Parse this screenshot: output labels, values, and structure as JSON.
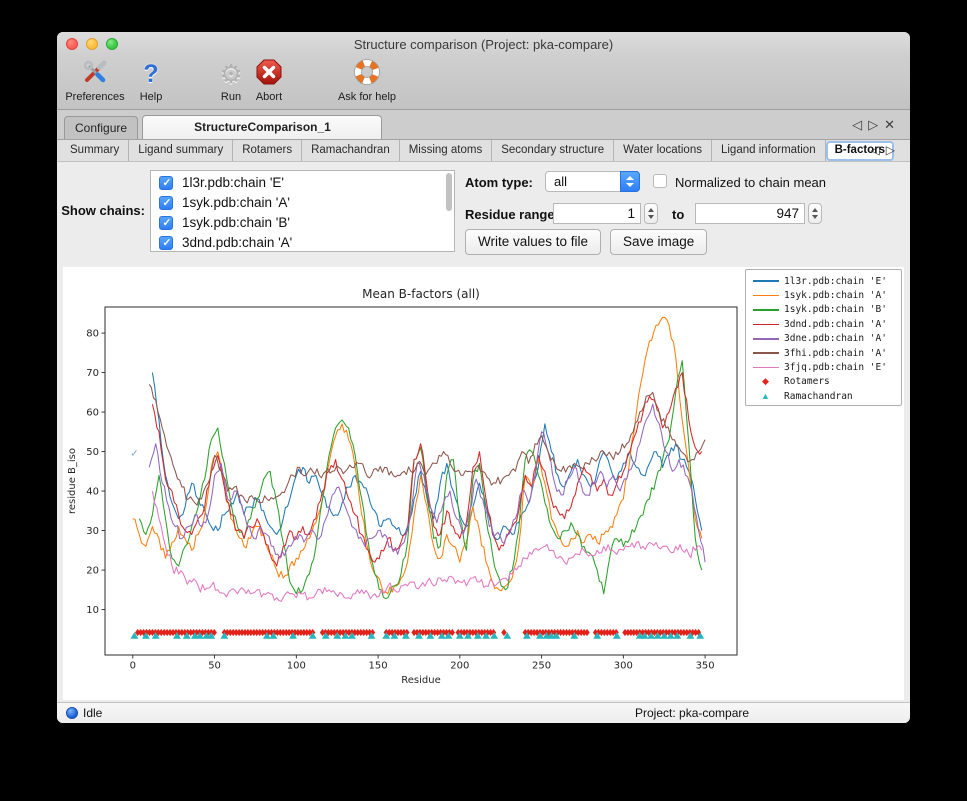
{
  "window": {
    "title": "Structure comparison (Project: pka-compare)"
  },
  "icons": {
    "tab_prev": "◁",
    "tab_next": "▷",
    "tab_close": "✕"
  },
  "toolbar": {
    "items": [
      {
        "label": "Preferences",
        "icon": "crossed-tools"
      },
      {
        "label": "Help",
        "icon": "question-mark",
        "glyph": "?"
      },
      {
        "label": "Run",
        "icon": "gear",
        "glyph": "⚙"
      },
      {
        "label": "Abort",
        "icon": "octagon-x"
      },
      {
        "label": "Ask for help",
        "icon": "lifebuoy"
      }
    ]
  },
  "tabs": {
    "items": [
      {
        "label": "Configure",
        "active": false
      },
      {
        "label": "StructureComparison_1",
        "active": true
      }
    ]
  },
  "subtabs": {
    "active_index": 8,
    "items": [
      {
        "label": "Summary"
      },
      {
        "label": "Ligand summary"
      },
      {
        "label": "Rotamers"
      },
      {
        "label": "Ramachandran"
      },
      {
        "label": "Missing atoms"
      },
      {
        "label": "Secondary structure"
      },
      {
        "label": "Water locations"
      },
      {
        "label": "Ligand information"
      },
      {
        "label": "B-factors"
      }
    ]
  },
  "controls": {
    "show_chains_label": "Show chains:",
    "chains": [
      {
        "label": "1l3r.pdb:chain 'E'",
        "checked": true
      },
      {
        "label": "1syk.pdb:chain 'A'",
        "checked": true
      },
      {
        "label": "1syk.pdb:chain 'B'",
        "checked": true
      },
      {
        "label": "3dnd.pdb:chain 'A'",
        "checked": true
      }
    ],
    "atom_type_label": "Atom type:",
    "atom_type_value": "all",
    "normalized_label": "Normalized to chain mean",
    "normalized_checked": false,
    "residue_range_label": "Residue range:",
    "range_from": "1",
    "range_to_word": "to",
    "range_to": "947",
    "write_button": "Write values to file",
    "save_button": "Save image"
  },
  "statusbar": {
    "status": "Idle",
    "project": "Project: pka-compare"
  },
  "chart_data": {
    "type": "line",
    "title": "Mean B-factors (all)",
    "xlabel": "Residue",
    "ylabel": "residue B_iso",
    "xlim": [
      -17,
      369.5
    ],
    "ylim": [
      -1.5,
      86.6
    ],
    "xticks": [
      0,
      50,
      100,
      150,
      200,
      250,
      300,
      350
    ],
    "yticks": [
      10,
      20,
      30,
      40,
      50,
      60,
      70,
      80
    ],
    "grid": false,
    "legend_position": "outside-right",
    "series": [
      {
        "name": "1l3r.pdb:chain 'E'",
        "color": "#1f77b4",
        "x0": 12,
        "dx": 4,
        "y": [
          70,
          58,
          44,
          37,
          33,
          36,
          42,
          38,
          35,
          31,
          30,
          34,
          37,
          40,
          34,
          36,
          38,
          35,
          31,
          29,
          33,
          38,
          44,
          46,
          42,
          44,
          39,
          36,
          34,
          37,
          41,
          44,
          42,
          39,
          35,
          31,
          33,
          31,
          29,
          31,
          38,
          45,
          38,
          33,
          42,
          47,
          40,
          34,
          31,
          36,
          42,
          36,
          30,
          28,
          31,
          29,
          32,
          35,
          40,
          46,
          57,
          50,
          44,
          41,
          45,
          48,
          44,
          41,
          45,
          50,
          46,
          43,
          47,
          50,
          46,
          44,
          47,
          50,
          46,
          49,
          52,
          48,
          45,
          38,
          30
        ]
      },
      {
        "name": "1syk.pdb:chain 'A'",
        "color": "#ff7f0e",
        "x0": 0,
        "dx": 4,
        "y": [
          33,
          29,
          26,
          31,
          28,
          23,
          27,
          31,
          28,
          25,
          29,
          34,
          46,
          50,
          41,
          33,
          29,
          26,
          28,
          31,
          29,
          24,
          20,
          18,
          21,
          23,
          25,
          28,
          32,
          38,
          47,
          54,
          57,
          53,
          46,
          34,
          25,
          19,
          16,
          14,
          16,
          18,
          22,
          34,
          44,
          36,
          26,
          23,
          29,
          26,
          22,
          27,
          36,
          30,
          22,
          17,
          15,
          16,
          18,
          26,
          44,
          41,
          48,
          42,
          33,
          29,
          26,
          28,
          30,
          27,
          29,
          27,
          29,
          31,
          34,
          38,
          48,
          60,
          70,
          78,
          82,
          84,
          82,
          74,
          58,
          46,
          33,
          28
        ]
      },
      {
        "name": "1syk.pdb:chain 'B'",
        "color": "#2ca02c",
        "x0": 4,
        "dx": 4,
        "y": [
          33,
          29,
          34,
          44,
          33,
          23,
          21,
          26,
          31,
          36,
          43,
          53,
          56,
          47,
          37,
          31,
          28,
          33,
          38,
          43,
          45,
          37,
          27,
          17,
          14,
          15,
          19,
          26,
          38,
          49,
          56,
          58,
          56,
          49,
          38,
          27,
          19,
          15,
          13,
          16,
          19,
          27,
          48,
          51,
          39,
          28,
          26,
          44,
          48,
          33,
          25,
          43,
          47,
          33,
          24,
          18,
          15,
          20,
          30,
          48,
          50,
          44,
          37,
          31,
          28,
          30,
          32,
          29,
          26,
          24,
          20,
          14,
          24,
          28,
          26,
          28,
          31,
          34,
          38,
          43,
          48,
          53,
          65,
          73,
          52,
          28,
          20
        ]
      },
      {
        "name": "3dnd.pdb:chain 'A'",
        "color": "#d62728",
        "x0": 12,
        "dx": 4,
        "y": [
          62,
          55,
          43,
          40,
          34,
          30,
          29,
          33,
          36,
          45,
          49,
          41,
          34,
          30,
          28,
          31,
          33,
          29,
          24,
          21,
          26,
          30,
          28,
          31,
          29,
          33,
          40,
          45,
          48,
          43,
          38,
          34,
          29,
          25,
          22,
          25,
          28,
          25,
          27,
          30,
          48,
          52,
          41,
          31,
          29,
          35,
          31,
          28,
          32,
          46,
          50,
          38,
          29,
          25,
          28,
          31,
          35,
          44,
          41,
          49,
          45,
          38,
          35,
          33,
          36,
          42,
          46,
          44,
          40,
          43,
          39,
          42,
          45,
          50,
          55,
          60,
          64,
          62,
          56,
          60,
          66,
          70,
          58,
          51,
          50
        ]
      },
      {
        "name": "3dne.pdb:chain 'A'",
        "color": "#9467bd",
        "x0": 10,
        "dx": 4,
        "y": [
          46,
          52,
          42,
          36,
          31,
          28,
          31,
          34,
          31,
          34,
          44,
          47,
          38,
          40,
          37,
          31,
          28,
          31,
          29,
          26,
          23,
          25,
          27,
          29,
          28,
          30,
          28,
          33,
          39,
          41,
          36,
          31,
          28,
          26,
          28,
          30,
          29,
          26,
          24,
          27,
          34,
          47,
          44,
          36,
          32,
          37,
          40,
          33,
          29,
          35,
          43,
          38,
          31,
          29,
          27,
          29,
          33,
          40,
          37,
          44,
          55,
          50,
          42,
          39,
          43,
          46,
          42,
          39,
          42,
          45,
          41,
          44,
          40,
          43,
          47,
          52,
          58,
          62,
          57,
          50,
          45,
          48,
          44,
          40,
          30,
          22
        ]
      },
      {
        "name": "3fhi.pdb:chain 'A'",
        "color": "#8c564b",
        "x0": 10,
        "dx": 4,
        "y": [
          67,
          63,
          56,
          50,
          45,
          41,
          38,
          37,
          38,
          42,
          49,
          45,
          40,
          41,
          39,
          37,
          38,
          37,
          38,
          38,
          39,
          41,
          44,
          46,
          44,
          45,
          44,
          45,
          45,
          46,
          45,
          46,
          47,
          45,
          44,
          45,
          46,
          45,
          44,
          45,
          45,
          47,
          45,
          46,
          47,
          50,
          47,
          45,
          44,
          45,
          46,
          45,
          43,
          42,
          43,
          44,
          45,
          50,
          47,
          52,
          54,
          50,
          47,
          45,
          46,
          47,
          46,
          47,
          48,
          50,
          49,
          48,
          50,
          52,
          55,
          60,
          64,
          65,
          60,
          56,
          53,
          51,
          49,
          48,
          50,
          53
        ]
      },
      {
        "name": "3fjq.pdb:chain 'E'",
        "color": "#e377c2",
        "x0": 12,
        "dx": 4,
        "y": [
          40,
          33,
          26,
          21,
          19,
          18,
          17,
          16,
          15,
          16,
          15,
          14,
          15,
          14,
          15,
          14,
          15,
          14,
          14,
          13,
          13,
          14,
          13,
          14,
          13,
          14,
          14,
          15,
          14,
          14,
          13,
          14,
          15,
          14,
          14,
          15,
          16,
          15,
          16,
          16,
          17,
          16,
          17,
          16,
          18,
          17,
          18,
          17,
          16,
          18,
          17,
          16,
          17,
          17,
          18,
          19,
          21,
          23,
          24,
          25,
          26,
          25,
          23,
          22,
          23,
          24,
          25,
          24,
          25,
          26,
          25,
          24,
          25,
          26,
          27,
          26,
          27,
          27,
          26,
          25,
          26,
          25,
          24,
          25,
          25
        ]
      }
    ],
    "markers": [
      {
        "name": "Rotamers",
        "shape": "diamond",
        "color": "#e32119",
        "y": 4.2,
        "step": 1.8,
        "x_clusters": [
          [
            3,
            50
          ],
          [
            56,
            110
          ],
          [
            116,
            147
          ],
          [
            155,
            168
          ],
          [
            172,
            196
          ],
          [
            199,
            222
          ],
          [
            227,
            227
          ],
          [
            240,
            278
          ],
          [
            283,
            297
          ],
          [
            301,
            347
          ]
        ]
      },
      {
        "name": "Ramachandran",
        "shape": "triangle",
        "color": "#27b5be",
        "y": 3.4,
        "x": [
          1,
          8,
          14,
          27,
          33,
          38,
          41,
          45,
          48,
          56,
          82,
          86,
          98,
          110,
          118,
          125,
          130,
          134,
          146,
          155,
          160,
          167,
          175,
          182,
          189,
          193,
          200,
          205,
          211,
          216,
          221,
          229,
          241,
          249,
          253,
          256,
          259,
          270,
          284,
          296,
          310,
          313,
          317,
          321,
          325,
          329,
          333,
          341,
          347
        ]
      }
    ],
    "annotations": [
      {
        "text": "✓",
        "x": 1,
        "y": 49.5,
        "color": "#74a9cf"
      }
    ]
  }
}
